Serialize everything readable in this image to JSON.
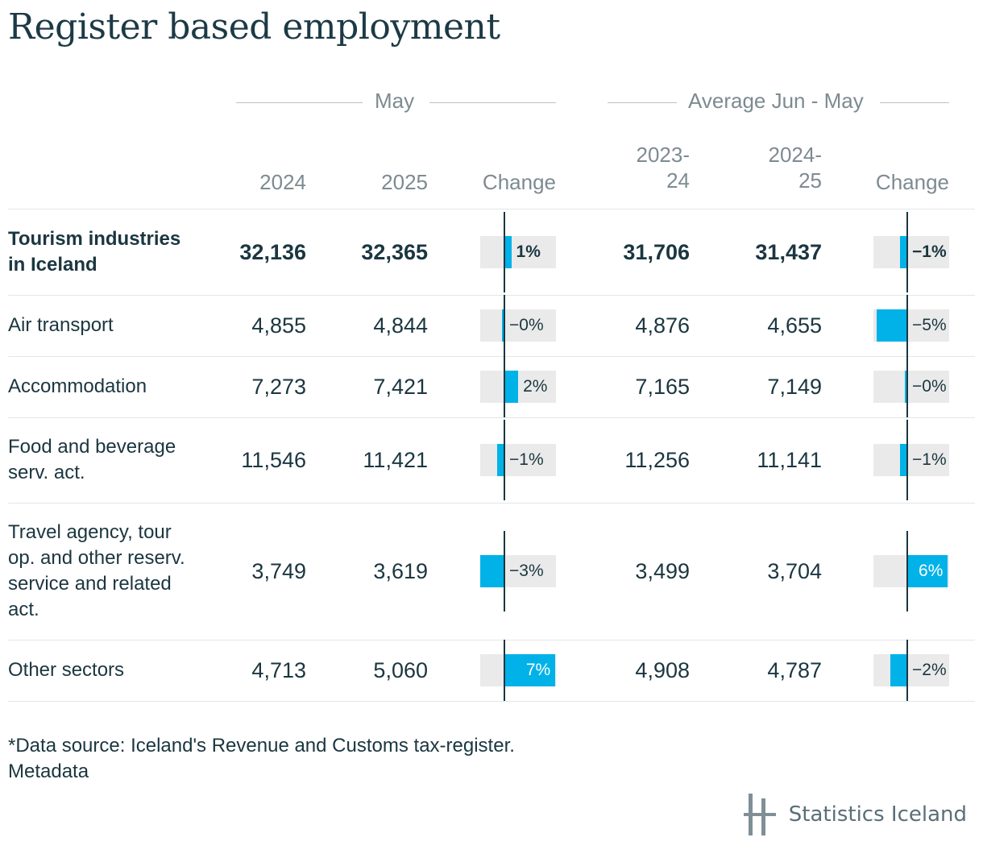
{
  "title": "Register based employment",
  "groups": {
    "may": "May",
    "average": "Average Jun - May"
  },
  "columns": [
    "2024",
    "2025",
    "Change",
    "2023-\n24",
    "2024-\n25",
    "Change"
  ],
  "chart_data": {
    "type": "table",
    "title": "Register based employment",
    "column_groups": [
      "May",
      "Average Jun - May"
    ],
    "columns": [
      "2024",
      "2025",
      "Change",
      "2023-24",
      "2024-25",
      "Change"
    ],
    "rows": [
      {
        "label": "Tourism industries in Iceland",
        "bold": true,
        "may_2024": "32,136",
        "may_2025": "32,365",
        "may_change": 1,
        "may_change_label": "1%",
        "avg_2324": "31,706",
        "avg_2425": "31,437",
        "avg_change": -1,
        "avg_change_label": "−1%"
      },
      {
        "label": "Air transport",
        "bold": false,
        "may_2024": "4,855",
        "may_2025": "4,844",
        "may_change": -0.2,
        "may_change_label": "−0%",
        "avg_2324": "4,876",
        "avg_2425": "4,655",
        "avg_change": -4.5,
        "avg_change_label": "−5%"
      },
      {
        "label": "Accommodation",
        "bold": false,
        "may_2024": "7,273",
        "may_2025": "7,421",
        "may_change": 2,
        "may_change_label": "2%",
        "avg_2324": "7,165",
        "avg_2425": "7,149",
        "avg_change": -0.2,
        "avg_change_label": "−0%"
      },
      {
        "label": "Food and beverage serv. act.",
        "bold": false,
        "may_2024": "11,546",
        "may_2025": "11,421",
        "may_change": -1.1,
        "may_change_label": "−1%",
        "avg_2324": "11,256",
        "avg_2425": "11,141",
        "avg_change": -1,
        "avg_change_label": "−1%"
      },
      {
        "label": "Travel agency, tour op. and other reserv. service and related act.",
        "bold": false,
        "may_2024": "3,749",
        "may_2025": "3,619",
        "may_change": -3.5,
        "may_change_label": "−3%",
        "avg_2324": "3,499",
        "avg_2425": "3,704",
        "avg_change": 5.9,
        "avg_change_label": "6%"
      },
      {
        "label": "Other sectors",
        "bold": false,
        "may_2024": "4,713",
        "may_2025": "5,060",
        "may_change": 7.4,
        "may_change_label": "7%",
        "avg_2324": "4,908",
        "avg_2425": "4,787",
        "avg_change": -2.5,
        "avg_change_label": "−2%"
      }
    ]
  },
  "footnote": {
    "line1": "*Data source: Iceland's Revenue and Customs tax-register.",
    "line2": "Metadata"
  },
  "logo": {
    "text": "Statistics Iceland",
    "icon": "statistics-iceland-logo-icon"
  },
  "colors": {
    "bar": "#00b2e8",
    "bar_bg": "#eaeaea",
    "text": "#1b3640",
    "muted": "#7d8b91"
  }
}
